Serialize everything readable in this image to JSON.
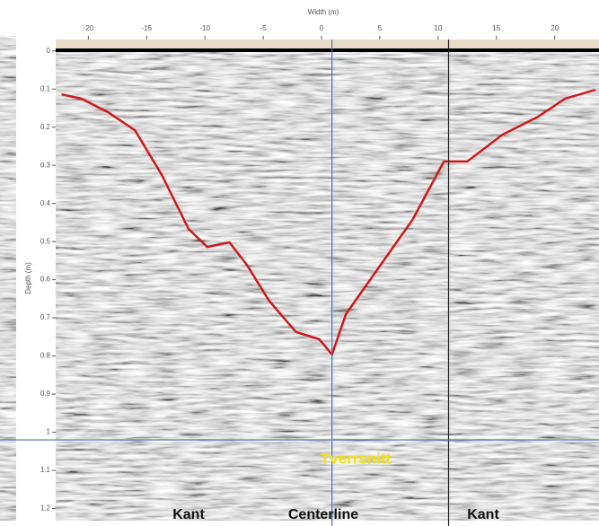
{
  "chart_data": {
    "type": "radargram",
    "x_label": "Width (m)",
    "y_label": "Depth (m)",
    "xlim": [
      -22.8,
      23.8
    ],
    "xticks": [
      -20,
      -15,
      -10,
      -5,
      0,
      5,
      10,
      15,
      20
    ],
    "ylim": [
      -0.03,
      1.22
    ],
    "yticks": [
      0,
      0.1,
      0.2,
      0.3,
      0.4,
      0.5,
      0.6,
      0.7,
      0.8,
      0.9,
      1,
      1.1,
      1.2
    ],
    "series": [
      {
        "color": "#d0191b",
        "x": [
          -22.3,
          -20.6,
          -18.3,
          -16.0,
          -13.7,
          -11.4,
          -9.8,
          -7.9,
          -6.4,
          -4.5,
          -2.2,
          -0.2,
          0.9,
          2.1,
          4.8,
          7.8,
          10.5,
          12.5,
          15.5,
          18.6,
          20.9,
          23.5
        ],
        "values": [
          0.114,
          0.125,
          0.161,
          0.208,
          0.325,
          0.467,
          0.514,
          0.502,
          0.561,
          0.655,
          0.737,
          0.756,
          0.796,
          0.69,
          0.573,
          0.443,
          0.29,
          0.29,
          0.22,
          0.172,
          0.125,
          0.102
        ]
      }
    ],
    "vlines": [
      {
        "x": 0.9,
        "color": "#4a6fb5"
      },
      {
        "x": 10.9,
        "color": "#222222"
      }
    ],
    "hlines": [
      {
        "y": 1.02,
        "color": "#4a6fb5"
      }
    ],
    "section_label": "Tverrsnitt",
    "bottom_labels": [
      "Kant",
      "Centerline",
      "Kant"
    ]
  }
}
